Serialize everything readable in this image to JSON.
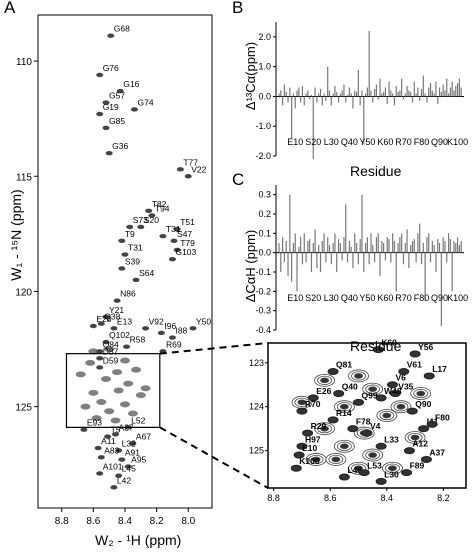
{
  "panels": {
    "A": {
      "letter": "A",
      "xlabel": "W₂ - ¹H (ppm)",
      "ylabel": "W₁ - ¹⁵N (ppm)",
      "xticks": [
        "8.8",
        "8.6",
        "8.4",
        "8.2",
        "8.0"
      ],
      "yticks": [
        "110",
        "115",
        "120",
        "125"
      ],
      "peaks": [
        {
          "label": "G68",
          "h": 8.49,
          "n": 108.9
        },
        {
          "label": "G76",
          "h": 8.56,
          "n": 110.6
        },
        {
          "label": "G16",
          "h": 8.43,
          "n": 111.3
        },
        {
          "label": "G57",
          "h": 8.52,
          "n": 111.8
        },
        {
          "label": "G74",
          "h": 8.34,
          "n": 112.1
        },
        {
          "label": "G19",
          "h": 8.56,
          "n": 112.3
        },
        {
          "label": "G85",
          "h": 8.52,
          "n": 112.9
        },
        {
          "label": "G36",
          "h": 8.5,
          "n": 114.0
        },
        {
          "label": "T77",
          "h": 8.05,
          "n": 114.7
        },
        {
          "label": "V22",
          "h": 8.0,
          "n": 115.0
        },
        {
          "label": "T82",
          "h": 8.25,
          "n": 116.5
        },
        {
          "label": "T94",
          "h": 8.23,
          "n": 116.7
        },
        {
          "label": "T51",
          "h": 8.07,
          "n": 117.3
        },
        {
          "label": "S73",
          "h": 8.37,
          "n": 117.2
        },
        {
          "label": "S20",
          "h": 8.3,
          "n": 117.2
        },
        {
          "label": "T31",
          "h": 8.16,
          "n": 117.6
        },
        {
          "label": "T9",
          "h": 8.42,
          "n": 117.8
        },
        {
          "label": "S47",
          "h": 8.09,
          "n": 117.8
        },
        {
          "label": "T79",
          "h": 8.07,
          "n": 118.2
        },
        {
          "label": "T31",
          "h": 8.4,
          "n": 118.4
        },
        {
          "label": "G103",
          "h": 8.1,
          "n": 118.6
        },
        {
          "label": "S39",
          "h": 8.42,
          "n": 119.0
        },
        {
          "label": "S64",
          "h": 8.33,
          "n": 119.5
        },
        {
          "label": "N86",
          "h": 8.45,
          "n": 120.4
        },
        {
          "label": "Y21",
          "h": 8.52,
          "n": 121.1
        },
        {
          "label": "E28",
          "h": 8.6,
          "n": 121.5
        },
        {
          "label": "Q38",
          "h": 8.55,
          "n": 121.4
        },
        {
          "label": "E13",
          "h": 8.47,
          "n": 121.6
        },
        {
          "label": "V92",
          "h": 8.27,
          "n": 121.6
        },
        {
          "label": "I96",
          "h": 8.17,
          "n": 121.8
        },
        {
          "label": "I88",
          "h": 8.1,
          "n": 122.0
        },
        {
          "label": "Y50",
          "h": 7.97,
          "n": 121.6
        },
        {
          "label": "Q102",
          "h": 8.52,
          "n": 122.2
        },
        {
          "label": "R58",
          "h": 8.39,
          "n": 122.4
        },
        {
          "label": "Q84",
          "h": 8.56,
          "n": 122.6
        },
        {
          "label": "R69",
          "h": 8.16,
          "n": 122.6
        },
        {
          "label": "D87",
          "h": 8.56,
          "n": 122.9
        },
        {
          "label": "D59",
          "h": 8.56,
          "n": 123.3
        },
        {
          "label": "E93",
          "h": 8.66,
          "n": 126.0
        },
        {
          "label": "L52",
          "h": 8.38,
          "n": 125.9
        },
        {
          "label": "T5",
          "h": 8.51,
          "n": 126.3
        },
        {
          "label": "A27",
          "h": 8.46,
          "n": 126.2
        },
        {
          "label": "A67",
          "h": 8.35,
          "n": 126.6
        },
        {
          "label": "A11",
          "h": 8.57,
          "n": 126.8
        },
        {
          "label": "L32",
          "h": 8.44,
          "n": 126.9
        },
        {
          "label": "A83",
          "h": 8.55,
          "n": 127.2
        },
        {
          "label": "A91",
          "h": 8.42,
          "n": 127.3
        },
        {
          "label": "A95",
          "h": 8.38,
          "n": 127.6
        },
        {
          "label": "A101",
          "h": 8.56,
          "n": 127.9
        },
        {
          "label": "L45",
          "h": 8.44,
          "n": 128.0
        },
        {
          "label": "L42",
          "h": 8.47,
          "n": 128.5
        }
      ]
    },
    "B": {
      "letter": "B",
      "ylabel": "Δ¹³Cα(ppm)",
      "xlabel": "Residue",
      "yticks": [
        "2.0",
        "1.0",
        "0.0",
        "-1.0",
        "-2.0"
      ],
      "ylim": [
        -2.0,
        2.5
      ],
      "xticklabels": [
        "E10",
        "S20",
        "L30",
        "Q40",
        "Y50",
        "K60",
        "R70",
        "F80",
        "Q90",
        "K100"
      ],
      "values": [
        0.1,
        0.2,
        -0.3,
        0.4,
        0.15,
        -0.2,
        0.3,
        -1.4,
        0.1,
        -0.4,
        0.2,
        0.3,
        -0.2,
        0.35,
        -0.3,
        0.1,
        0.2,
        -0.1,
        0.05,
        -2.1,
        0.3,
        -0.2,
        0.1,
        0.25,
        -0.3,
        0.1,
        -0.15,
        1.0,
        0.2,
        -0.3,
        0.1,
        0.35,
        0.15,
        -0.2,
        0.1,
        0.2,
        0.4,
        -0.2,
        0.05,
        0.3,
        0.1,
        -0.4,
        0.2,
        0.15,
        0.9,
        -0.3,
        0.2,
        -1.6,
        0.1,
        0.3,
        2.2,
        0.2,
        -0.2,
        0.25,
        0.4,
        -0.1,
        0.6,
        0.1,
        0.15,
        0.3,
        -0.25,
        0.5,
        0.2,
        0.1,
        -0.3,
        0.35,
        0.15,
        0.2,
        0.6,
        -0.1,
        0.1,
        0.35,
        0.2,
        0.15,
        -0.2,
        0.5,
        0.1,
        0.3,
        -0.15,
        0.25,
        0.7,
        0.1,
        -0.2,
        0.3,
        0.45,
        0.2,
        0.1,
        0.5,
        -0.25,
        0.3,
        0.15,
        0.4,
        0.2,
        0.6,
        0.1,
        0.3,
        0.5,
        0.2,
        0.35,
        0.45,
        0.6,
        0.3
      ]
    },
    "C": {
      "letter": "C",
      "ylabel": "ΔCαH (ppm)",
      "xlabel": "Residue",
      "yticks": [
        "0.3",
        "0.2",
        "0.1",
        "0.0",
        "-0.1",
        "-0.2",
        "-0.3",
        "-0.4"
      ],
      "ylim": [
        -0.4,
        0.35
      ],
      "xticklabels": [
        "E10",
        "S20",
        "L30",
        "Q40",
        "Y50",
        "K60",
        "R70",
        "F80",
        "Q90",
        "K100"
      ],
      "values": [
        0.05,
        -0.1,
        0.08,
        -0.05,
        0.06,
        -0.12,
        0.3,
        -0.15,
        0.05,
        0.1,
        -0.2,
        0.03,
        0.08,
        -0.06,
        0.1,
        -0.05,
        0.06,
        0.07,
        -0.1,
        0.05,
        0.12,
        -0.08,
        0.04,
        -0.1,
        0.06,
        0.1,
        -0.05,
        0.08,
        0.04,
        -0.06,
        0.05,
        0.1,
        -0.1,
        0.07,
        0.05,
        -0.04,
        0.08,
        0.25,
        -0.05,
        0.06,
        0.03,
        -0.08,
        0.1,
        0.05,
        -0.06,
        0.07,
        0.3,
        -0.1,
        0.05,
        0.08,
        -0.06,
        0.1,
        0.04,
        -0.05,
        0.08,
        0.1,
        -0.12,
        0.06,
        0.05,
        -0.04,
        0.08,
        0.07,
        -0.05,
        0.1,
        0.06,
        -0.2,
        0.05,
        0.08,
        0.1,
        -0.06,
        0.05,
        0.12,
        -0.08,
        0.04,
        0.06,
        0.07,
        -0.05,
        0.1,
        0.15,
        -0.06,
        0.05,
        -0.25,
        0.08,
        0.1,
        -0.05,
        0.06,
        0.04,
        -0.1,
        0.07,
        0.05,
        -0.38,
        0.08,
        0.06,
        -0.05,
        0.1,
        0.07,
        -0.2,
        0.06,
        0.05,
        0.08,
        0.04,
        0.06
      ]
    },
    "inset": {
      "xticks": [
        "8.8",
        "8.6",
        "8.4",
        "8.2"
      ],
      "yticks": [
        "123",
        "124",
        "125"
      ],
      "peaks": [
        {
          "label": "K60",
          "h": 8.43,
          "n": 122.7
        },
        {
          "label": "Y56",
          "h": 8.3,
          "n": 122.8
        },
        {
          "label": "V61",
          "h": 8.34,
          "n": 123.2
        },
        {
          "label": "L17",
          "h": 8.25,
          "n": 123.3
        },
        {
          "label": "Q81",
          "h": 8.59,
          "n": 123.2
        },
        {
          "label": "V6",
          "h": 8.38,
          "n": 123.5
        },
        {
          "label": "V35",
          "h": 8.37,
          "n": 123.7
        },
        {
          "label": "W48",
          "h": 8.42,
          "n": 123.8
        },
        {
          "label": "Q40",
          "h": 8.57,
          "n": 123.7
        },
        {
          "label": "E26",
          "h": 8.66,
          "n": 123.8
        },
        {
          "label": "Q99",
          "h": 8.5,
          "n": 123.9
        },
        {
          "label": "Q90",
          "h": 8.31,
          "n": 124.1
        },
        {
          "label": "R70",
          "h": 8.7,
          "n": 124.1
        },
        {
          "label": "R14",
          "h": 8.59,
          "n": 124.3
        },
        {
          "label": "I41",
          "h": 8.27,
          "n": 124.5
        },
        {
          "label": "F80",
          "h": 8.24,
          "n": 124.4
        },
        {
          "label": "F78",
          "h": 8.52,
          "n": 124.5
        },
        {
          "label": "V4",
          "h": 8.47,
          "n": 124.6
        },
        {
          "label": "R29",
          "h": 8.68,
          "n": 124.6
        },
        {
          "label": "H97",
          "h": 8.7,
          "n": 124.9
        },
        {
          "label": "L33",
          "h": 8.42,
          "n": 124.9
        },
        {
          "label": "E10",
          "h": 8.71,
          "n": 125.1
        },
        {
          "label": "A12",
          "h": 8.32,
          "n": 125.0
        },
        {
          "label": "A37",
          "h": 8.26,
          "n": 125.2
        },
        {
          "label": "K100",
          "h": 8.72,
          "n": 125.4
        },
        {
          "label": "L46",
          "h": 8.55,
          "n": 125.6
        },
        {
          "label": "L53",
          "h": 8.48,
          "n": 125.5
        },
        {
          "label": "L30",
          "h": 8.42,
          "n": 125.7
        },
        {
          "label": "F89",
          "h": 8.33,
          "n": 125.5
        }
      ]
    }
  }
}
